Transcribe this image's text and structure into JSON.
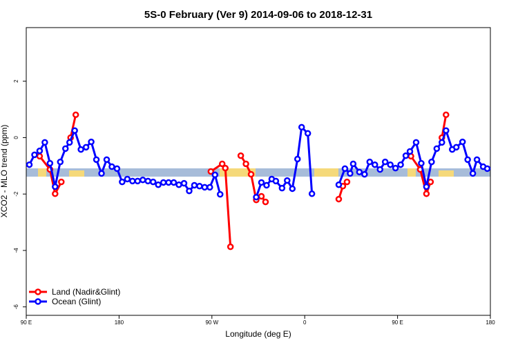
{
  "chart_data": {
    "type": "line",
    "title": "5S-0 February (Ver 9)   2014-09-06 to 2018-12-31",
    "xlabel": "Longitude (deg E)",
    "ylabel": "XCO2 - MLO trend (ppm)",
    "xlim": [
      90,
      540
    ],
    "ylim": [
      -6.3,
      3.9
    ],
    "xticks": [
      {
        "value": 90,
        "label": "90 E"
      },
      180,
      {
        "value": 270,
        "label": "90 W"
      },
      {
        "value": 360,
        "label": "0"
      },
      {
        "value": 450,
        "label": "90 E"
      },
      {
        "value": 540,
        "label": "180"
      }
    ],
    "yticks": [
      -6,
      -4,
      -2,
      0,
      2
    ],
    "legend": "bottom-left",
    "series": [
      {
        "name": "Land (Nadir&Glint)",
        "color": "#ff0000",
        "x": [
          103,
          113,
          118,
          124,
          null,
          133,
          138,
          null,
          269,
          280,
          283,
          288,
          null,
          298,
          303,
          308,
          313,
          318,
          322,
          null,
          393,
          397,
          401,
          null,
          463,
          472,
          478,
          482,
          null,
          493,
          497
        ],
        "values": [
          -0.66,
          -1.13,
          -1.99,
          -1.57,
          null,
          0.0,
          0.81,
          null,
          -1.2,
          -0.93,
          -1.08,
          -3.87,
          null,
          -0.64,
          -0.93,
          -1.3,
          -2.21,
          -2.08,
          -2.28,
          null,
          -2.18,
          -1.72,
          -1.57,
          null,
          -0.66,
          -1.13,
          -1.99,
          -1.57,
          null,
          0.0,
          0.81
        ]
      },
      {
        "name": "Ocean (Glint)",
        "color": "#0000ff",
        "x": [
          93,
          98,
          103,
          108,
          113,
          118,
          123,
          128,
          132,
          137,
          143,
          148,
          153,
          158,
          163,
          168,
          173,
          178,
          183,
          188,
          193,
          198,
          203,
          208,
          213,
          218,
          223,
          228,
          233,
          238,
          243,
          248,
          253,
          258,
          263,
          268,
          273,
          278,
          null,
          313,
          318,
          323,
          328,
          332,
          338,
          343,
          348,
          353,
          357,
          363,
          367,
          null,
          393,
          399,
          404,
          407,
          413,
          418,
          423,
          428,
          433,
          438,
          443,
          448,
          453,
          458,
          462,
          468,
          473,
          478,
          483,
          488,
          493,
          497,
          503,
          507,
          513,
          518,
          523,
          527,
          533,
          537
        ],
        "values": [
          -0.96,
          -0.61,
          -0.47,
          -0.17,
          -0.91,
          -1.74,
          -0.86,
          -0.39,
          -0.17,
          0.25,
          -0.42,
          -0.34,
          -0.15,
          -0.78,
          -1.27,
          -0.78,
          -1.03,
          -1.1,
          -1.57,
          -1.47,
          -1.54,
          -1.54,
          -1.5,
          -1.54,
          -1.57,
          -1.67,
          -1.59,
          -1.59,
          -1.59,
          -1.67,
          -1.62,
          -1.89,
          -1.69,
          -1.72,
          -1.76,
          -1.76,
          -1.32,
          -2.01,
          null,
          -2.11,
          -1.59,
          -1.69,
          -1.47,
          -1.54,
          -1.79,
          -1.52,
          -1.81,
          -0.76,
          0.37,
          0.15,
          -1.99,
          null,
          -1.67,
          -1.1,
          -1.27,
          -0.93,
          -1.22,
          -1.3,
          -0.86,
          -0.96,
          -1.13,
          -0.86,
          -0.96,
          -1.08,
          -0.96,
          -0.64,
          -0.49,
          -0.17,
          -0.91,
          -1.74,
          -0.86,
          -0.39,
          -0.17,
          0.25,
          -0.42,
          -0.34,
          -0.15,
          -0.78,
          -1.27,
          -0.78,
          -1.03,
          -1.1
        ]
      }
    ]
  }
}
